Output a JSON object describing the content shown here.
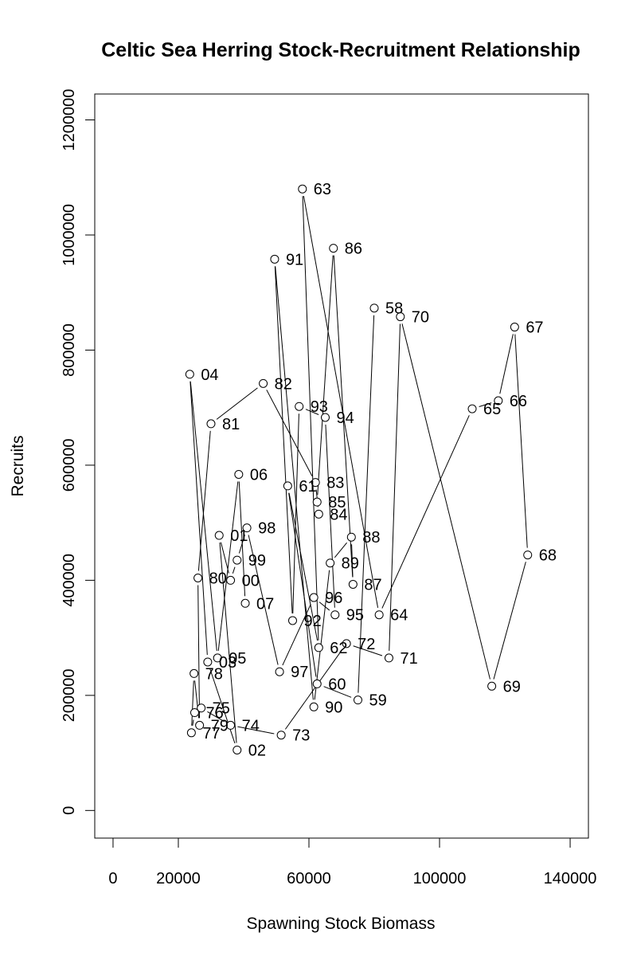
{
  "chart_data": {
    "type": "scatter",
    "title": "Celtic Sea Herring Stock-Recruitment Relationship",
    "xlabel": "Spawning Stock Biomass",
    "ylabel": "Recruits",
    "xlim": [
      -5600,
      145600
    ],
    "ylim": [
      -48000,
      1245000
    ],
    "x_ticks": [
      0,
      20000,
      60000,
      100000,
      140000
    ],
    "x_tick_labels": [
      "0",
      "20000",
      "60000",
      "100000",
      "140000"
    ],
    "y_ticks": [
      0,
      200000,
      400000,
      600000,
      800000,
      1000000,
      1200000
    ],
    "y_tick_labels": [
      "0",
      "200000",
      "400000",
      "600000",
      "800000",
      "1000000",
      "1200000"
    ],
    "grid": false,
    "connected": true,
    "points": [
      {
        "label": "58",
        "x": 80000,
        "y": 873000
      },
      {
        "label": "59",
        "x": 75000,
        "y": 192000
      },
      {
        "label": "60",
        "x": 62500,
        "y": 220000
      },
      {
        "label": "61",
        "x": 53500,
        "y": 564000
      },
      {
        "label": "62",
        "x": 63000,
        "y": 283000
      },
      {
        "label": "63",
        "x": 58000,
        "y": 1080000
      },
      {
        "label": "64",
        "x": 81500,
        "y": 340000
      },
      {
        "label": "65",
        "x": 110000,
        "y": 698000
      },
      {
        "label": "66",
        "x": 118000,
        "y": 712000
      },
      {
        "label": "67",
        "x": 123000,
        "y": 840000
      },
      {
        "label": "68",
        "x": 127000,
        "y": 444000
      },
      {
        "label": "69",
        "x": 116000,
        "y": 216000
      },
      {
        "label": "70",
        "x": 88000,
        "y": 858000
      },
      {
        "label": "71",
        "x": 84500,
        "y": 265000
      },
      {
        "label": "72",
        "x": 71500,
        "y": 290000
      },
      {
        "label": "73",
        "x": 51500,
        "y": 131000
      },
      {
        "label": "74",
        "x": 36000,
        "y": 148000
      },
      {
        "label": "75",
        "x": 27000,
        "y": 178000
      },
      {
        "label": "76",
        "x": 25000,
        "y": 170000
      },
      {
        "label": "77",
        "x": 24000,
        "y": 135000
      },
      {
        "label": "78",
        "x": 24800,
        "y": 238000
      },
      {
        "label": "79",
        "x": 26500,
        "y": 148000
      },
      {
        "label": "80",
        "x": 26000,
        "y": 404000
      },
      {
        "label": "81",
        "x": 30000,
        "y": 672000
      },
      {
        "label": "82",
        "x": 46000,
        "y": 742000
      },
      {
        "label": "83",
        "x": 62000,
        "y": 570000
      },
      {
        "label": "84",
        "x": 63000,
        "y": 515000
      },
      {
        "label": "85",
        "x": 62500,
        "y": 536000
      },
      {
        "label": "86",
        "x": 67500,
        "y": 977000
      },
      {
        "label": "87",
        "x": 73500,
        "y": 393000
      },
      {
        "label": "88",
        "x": 73000,
        "y": 475000
      },
      {
        "label": "89",
        "x": 66500,
        "y": 430000
      },
      {
        "label": "90",
        "x": 61500,
        "y": 180000
      },
      {
        "label": "91",
        "x": 49500,
        "y": 958000
      },
      {
        "label": "92",
        "x": 55000,
        "y": 330000
      },
      {
        "label": "93",
        "x": 57000,
        "y": 702000
      },
      {
        "label": "94",
        "x": 65000,
        "y": 683000
      },
      {
        "label": "95",
        "x": 68000,
        "y": 340000
      },
      {
        "label": "96",
        "x": 61500,
        "y": 370000
      },
      {
        "label": "97",
        "x": 51000,
        "y": 241000
      },
      {
        "label": "98",
        "x": 41000,
        "y": 491000
      },
      {
        "label": "99",
        "x": 38000,
        "y": 435000
      },
      {
        "label": "00",
        "x": 36000,
        "y": 400000
      },
      {
        "label": "01",
        "x": 32500,
        "y": 478000
      },
      {
        "label": "02",
        "x": 38000,
        "y": 105000
      },
      {
        "label": "03",
        "x": 29000,
        "y": 258000
      },
      {
        "label": "04",
        "x": 23500,
        "y": 758000
      },
      {
        "label": "05",
        "x": 32000,
        "y": 265000
      },
      {
        "label": "06",
        "x": 38500,
        "y": 584000
      },
      {
        "label": "07",
        "x": 40500,
        "y": 360000
      }
    ]
  }
}
